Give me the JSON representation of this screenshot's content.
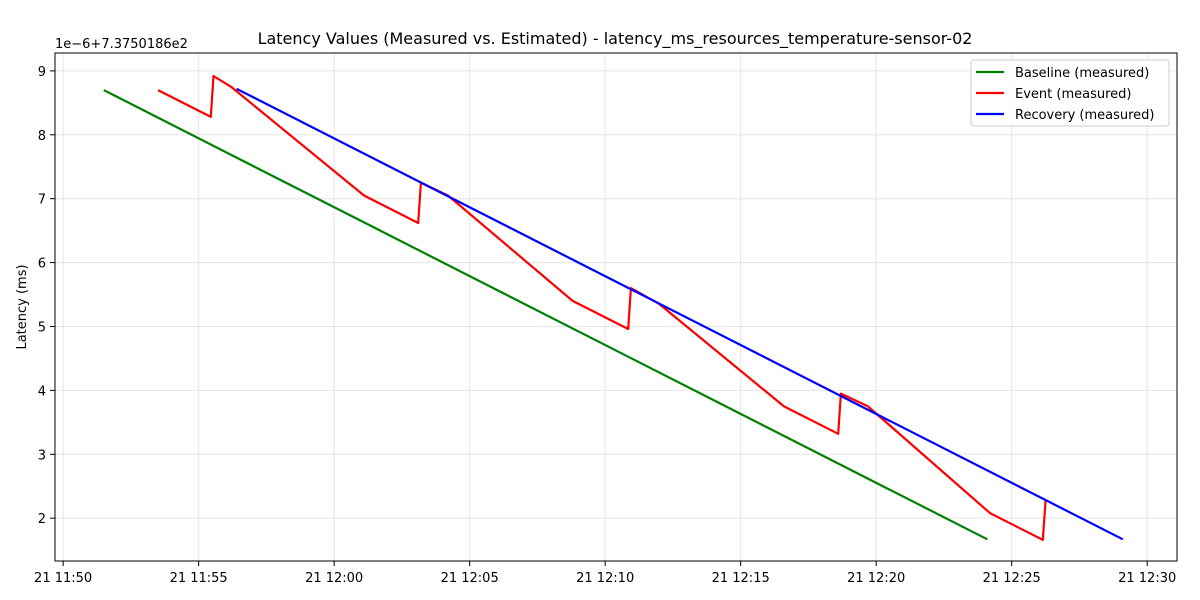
{
  "chart_data": {
    "type": "line",
    "title": "Latency Values (Measured vs. Estimated) - latency_ms_resources_temperature-sensor-02",
    "xlabel": "",
    "ylabel": "Latency (ms)",
    "offset_label": "1e−6+7.3750186e2",
    "x_tick_labels": [
      "21 11:50",
      "21 11:55",
      "21 12:00",
      "21 12:05",
      "21 12:10",
      "21 12:15",
      "21 12:20",
      "21 12:25",
      "21 12:30"
    ],
    "y_tick_labels": [
      "2",
      "3",
      "4",
      "5",
      "6",
      "7",
      "8",
      "9"
    ],
    "y_ticks": [
      2,
      3,
      4,
      5,
      6,
      7,
      8,
      9
    ],
    "x_range_minutes": [
      -0.3,
      41.1
    ],
    "y_range": [
      1.33,
      9.28
    ],
    "grid": true,
    "legend_position": "top-right",
    "series": [
      {
        "name": "Baseline (measured)",
        "color": "#008000",
        "points": [
          [
            1.5,
            8.7
          ],
          [
            34.1,
            1.67
          ]
        ]
      },
      {
        "name": "Event (measured)",
        "color": "#ff0000",
        "points": [
          [
            3.5,
            8.7
          ],
          [
            5.45,
            8.28
          ],
          [
            5.55,
            8.92
          ],
          [
            6.2,
            8.75
          ],
          [
            11.1,
            7.05
          ],
          [
            13.1,
            6.62
          ],
          [
            13.2,
            7.25
          ],
          [
            14.2,
            7.05
          ],
          [
            18.8,
            5.4
          ],
          [
            20.85,
            4.96
          ],
          [
            20.95,
            5.6
          ],
          [
            22.0,
            5.35
          ],
          [
            26.6,
            3.75
          ],
          [
            28.6,
            3.32
          ],
          [
            28.7,
            3.95
          ],
          [
            29.7,
            3.75
          ],
          [
            34.2,
            2.08
          ],
          [
            36.15,
            1.66
          ],
          [
            36.25,
            2.28
          ]
        ]
      },
      {
        "name": "Recovery (measured)",
        "color": "#0000ff",
        "points": [
          [
            6.4,
            8.72
          ],
          [
            39.1,
            1.67
          ]
        ]
      }
    ]
  }
}
